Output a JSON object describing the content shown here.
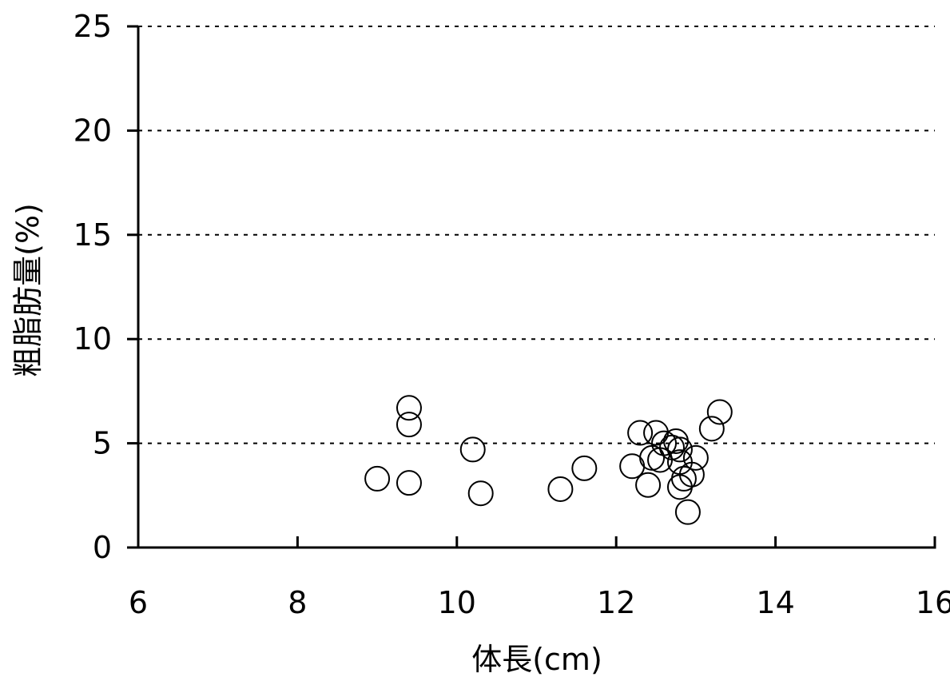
{
  "chart_data": {
    "type": "scatter",
    "title": "",
    "xlabel": "体長(cm)",
    "ylabel": "粗脂肪量(%)",
    "xlim": [
      6,
      16
    ],
    "ylim": [
      0,
      25
    ],
    "x_ticks": [
      6,
      8,
      10,
      12,
      14,
      16
    ],
    "y_ticks": [
      0,
      5,
      10,
      15,
      20,
      25
    ],
    "x_tick_labels": [
      "6",
      "8",
      "10",
      "12",
      "14",
      "16"
    ],
    "y_tick_labels": [
      "0",
      "5",
      "10",
      "15",
      "20",
      "25"
    ],
    "grid": "horizontal dashed",
    "marker": "open circle",
    "colors": {
      "axis": "#000000",
      "marker_stroke": "#000000",
      "marker_fill": "#ffffff",
      "grid": "#000000"
    },
    "series": [
      {
        "x": [
          9.0,
          9.4,
          9.4,
          9.4,
          10.2,
          10.3,
          11.3,
          11.6,
          12.2,
          12.3,
          12.4,
          12.45,
          12.5,
          12.55,
          12.6,
          12.7,
          12.75,
          12.8,
          12.8,
          12.8,
          12.85,
          12.9,
          12.95,
          13.0,
          13.2,
          13.3
        ],
        "y": [
          3.3,
          6.7,
          5.9,
          3.1,
          4.7,
          2.6,
          2.8,
          3.8,
          3.9,
          5.5,
          3.0,
          4.3,
          5.5,
          4.2,
          5.0,
          4.8,
          5.1,
          4.7,
          4.1,
          2.9,
          3.3,
          1.7,
          3.5,
          4.3,
          5.7,
          6.5
        ]
      }
    ]
  }
}
